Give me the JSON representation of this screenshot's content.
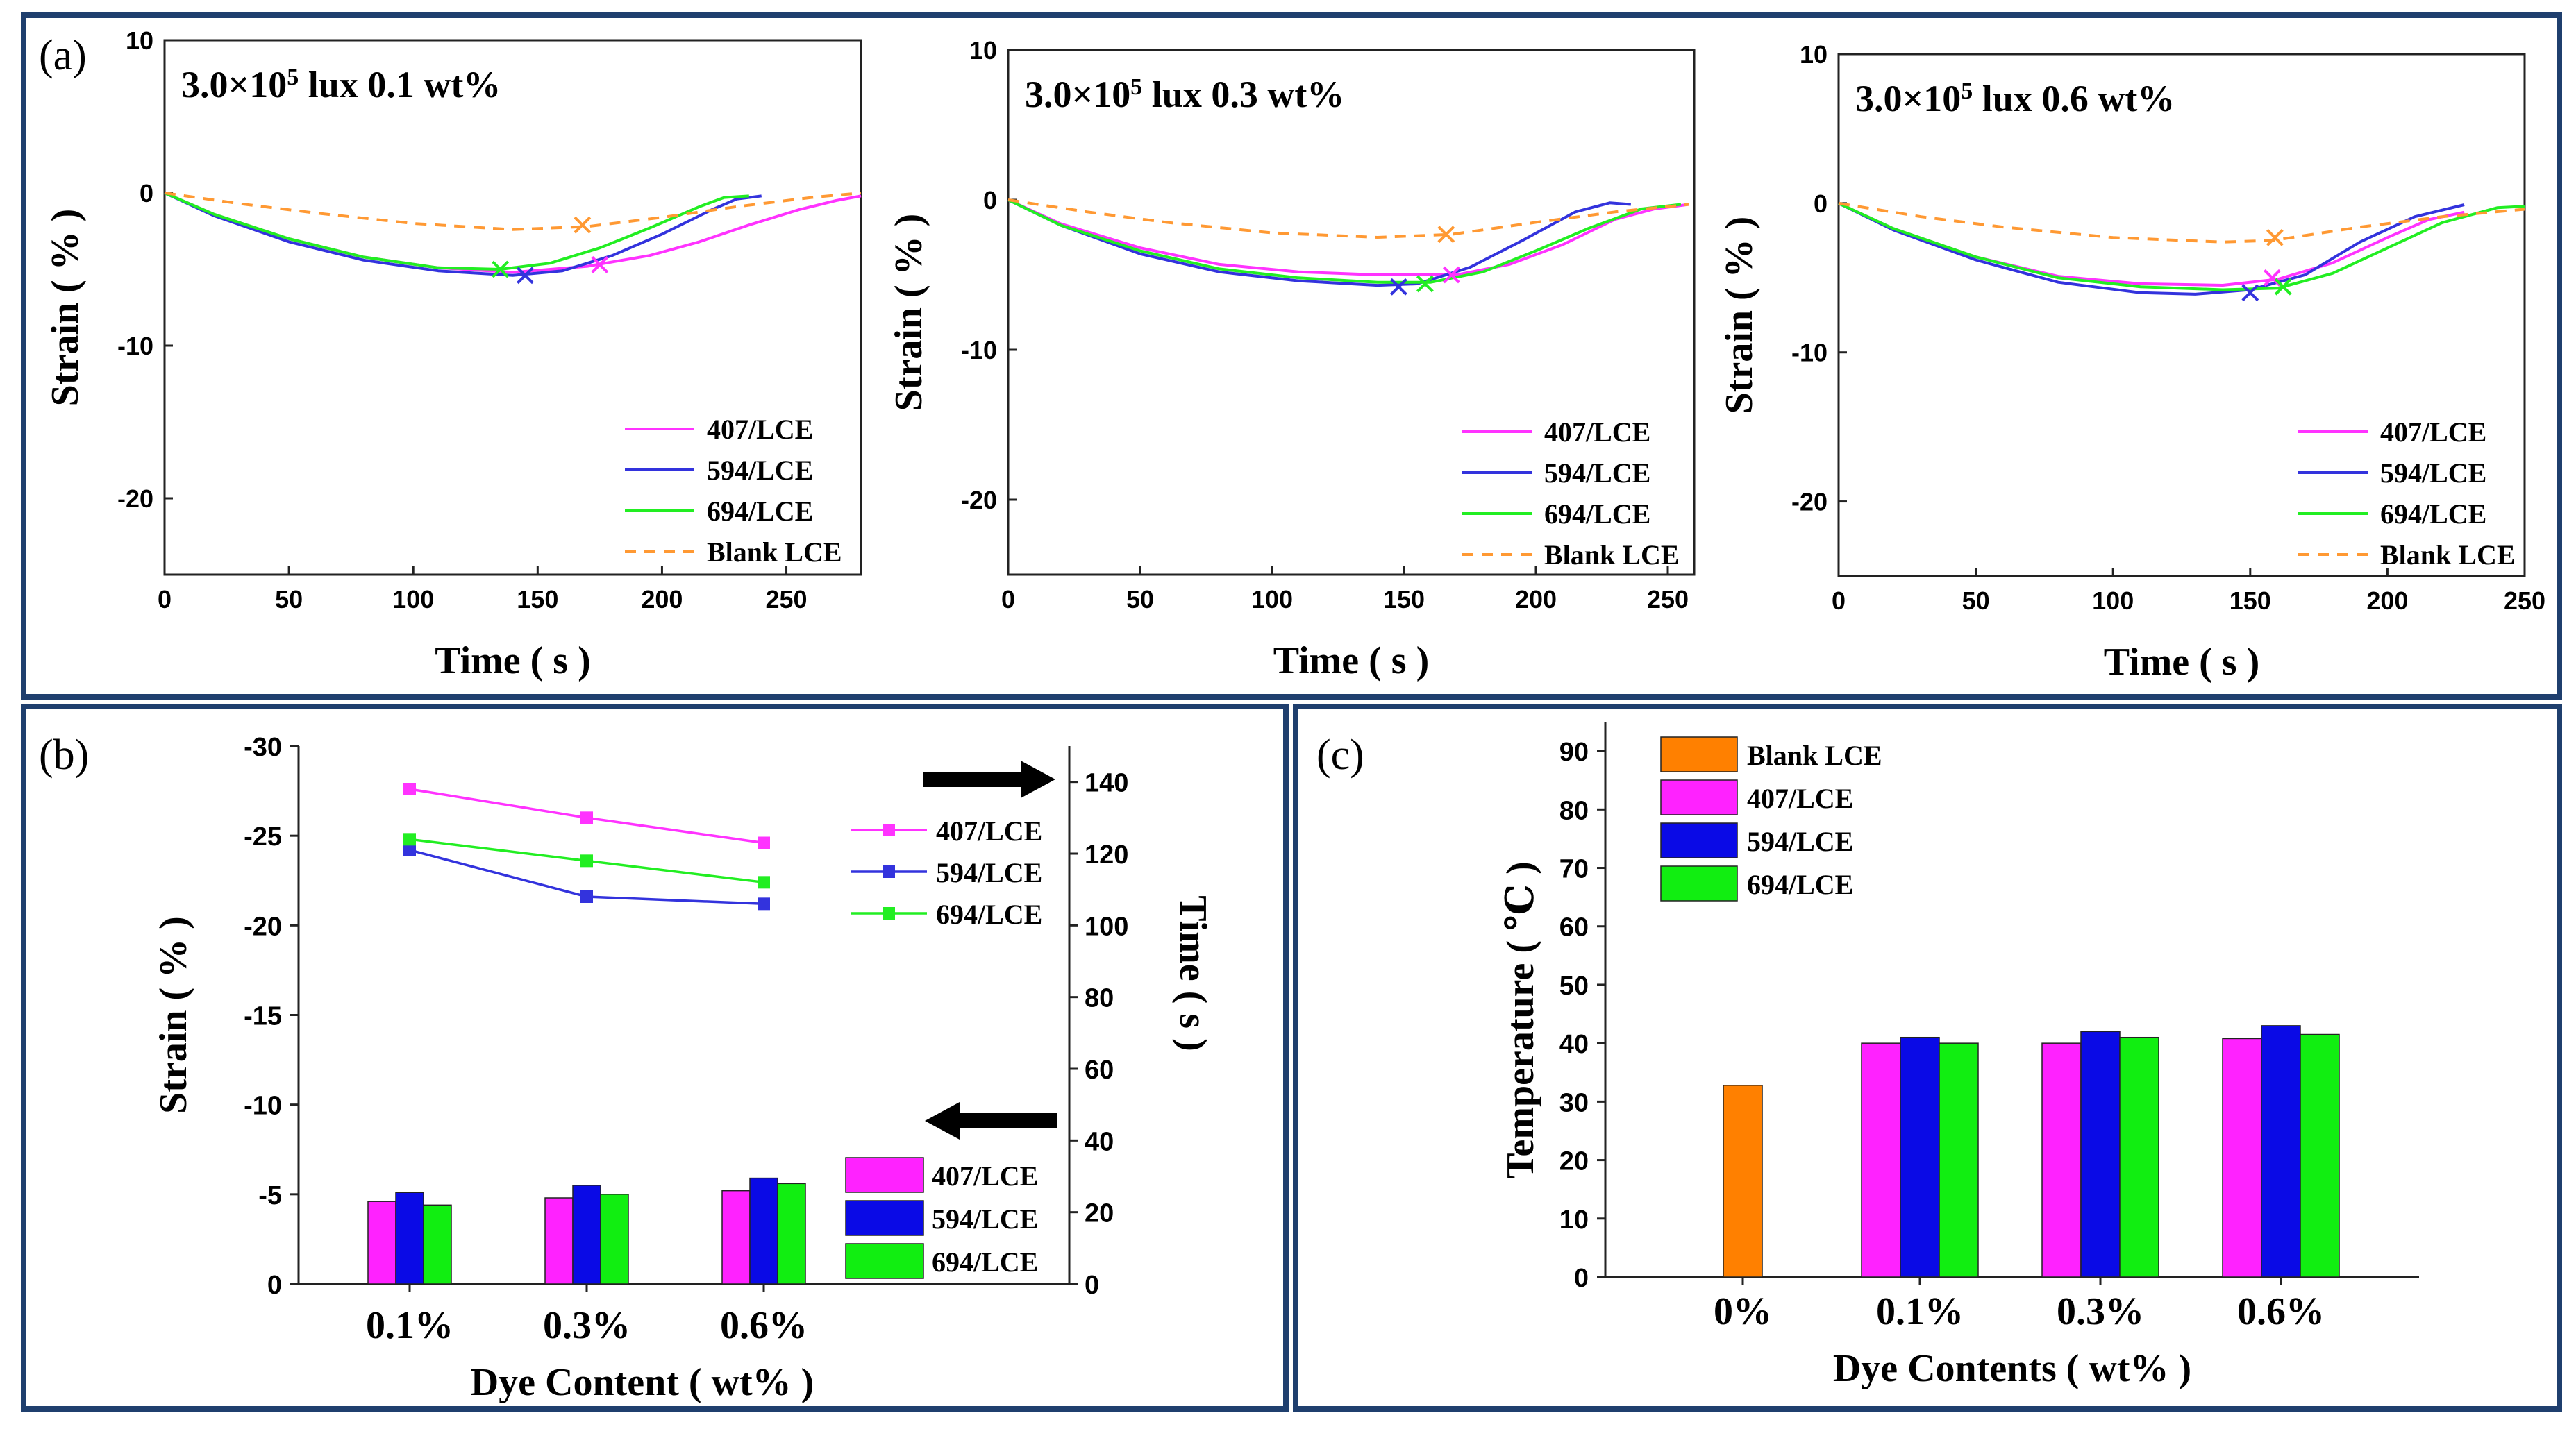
{
  "panel_labels": {
    "a": "(a)",
    "b": "(b)",
    "c": "(c)"
  },
  "colors": {
    "c407": "#ff33ff",
    "c594": "#3333dd",
    "c694": "#22ee22",
    "blank": "#ff9933",
    "frame": "#1f3f6e",
    "bar407": "#ff22ff",
    "bar594": "#0a0ae6",
    "bar694": "#11ee11",
    "barBlank": "#ff8000"
  },
  "chart_data": [
    {
      "id": "a1",
      "type": "line",
      "title": "3.0×10⁵ lux  0.1 wt%",
      "title_base": "3.0×10",
      "title_sup": "5",
      "title_rest": " lux  0.1 wt%",
      "xlabel": "Time ( s )",
      "ylabel": "Strain ( % )",
      "xlim": [
        0,
        280
      ],
      "ylim": [
        -25,
        10
      ],
      "xticks": [
        0,
        50,
        100,
        150,
        200,
        250
      ],
      "yticks": [
        10,
        0,
        -10,
        -20
      ],
      "legend": [
        "407/LCE",
        "594/LCE",
        "694/LCE",
        "Blank LCE"
      ],
      "series": [
        {
          "name": "407/LCE",
          "x": [
            0,
            20,
            50,
            80,
            110,
            140,
            170,
            195,
            215,
            235,
            255,
            270,
            280
          ],
          "y": [
            0,
            -1.4,
            -3.0,
            -4.2,
            -4.9,
            -5.2,
            -4.8,
            -4.1,
            -3.2,
            -2.1,
            -1.1,
            -0.5,
            -0.2
          ]
        },
        {
          "name": "594/LCE",
          "x": [
            0,
            20,
            50,
            80,
            110,
            140,
            160,
            180,
            200,
            220,
            230,
            240
          ],
          "y": [
            0,
            -1.5,
            -3.2,
            -4.4,
            -5.1,
            -5.4,
            -5.1,
            -4.1,
            -2.7,
            -1.1,
            -0.4,
            -0.2
          ]
        },
        {
          "name": "694/LCE",
          "x": [
            0,
            20,
            50,
            80,
            110,
            135,
            155,
            175,
            195,
            215,
            225,
            235
          ],
          "y": [
            0,
            -1.4,
            -3.0,
            -4.2,
            -4.9,
            -5.0,
            -4.6,
            -3.6,
            -2.3,
            -0.9,
            -0.3,
            -0.2
          ]
        },
        {
          "name": "Blank LCE",
          "x": [
            0,
            30,
            60,
            100,
            140,
            170,
            200,
            230,
            260,
            280
          ],
          "y": [
            0,
            -0.7,
            -1.3,
            -2.0,
            -2.4,
            -2.2,
            -1.6,
            -0.9,
            -0.3,
            0
          ]
        }
      ],
      "markers": [
        {
          "name": "407/LCE",
          "x": 175,
          "y": -4.7
        },
        {
          "name": "594/LCE",
          "x": 145,
          "y": -5.4
        },
        {
          "name": "694/LCE",
          "x": 135,
          "y": -5.0
        },
        {
          "name": "Blank LCE",
          "x": 168,
          "y": -2.1
        }
      ]
    },
    {
      "id": "a2",
      "type": "line",
      "title": "3.0×10⁵ lux  0.3 wt%",
      "title_base": "3.0×10",
      "title_sup": "5",
      "title_rest": " lux  0.3 wt%",
      "xlabel": "Time ( s )",
      "ylabel": "Strain ( % )",
      "xlim": [
        0,
        260
      ],
      "ylim": [
        -25,
        10
      ],
      "xticks": [
        0,
        50,
        100,
        150,
        200,
        250
      ],
      "yticks": [
        10,
        0,
        -10,
        -20
      ],
      "legend": [
        "407/LCE",
        "594/LCE",
        "694/LCE",
        "Blank LCE"
      ],
      "series": [
        {
          "name": "407/LCE",
          "x": [
            0,
            20,
            50,
            80,
            110,
            140,
            170,
            190,
            210,
            230,
            245,
            258
          ],
          "y": [
            0,
            -1.6,
            -3.2,
            -4.3,
            -4.8,
            -5.0,
            -5.0,
            -4.3,
            -3.0,
            -1.3,
            -0.6,
            -0.3
          ]
        },
        {
          "name": "594/LCE",
          "x": [
            0,
            20,
            50,
            80,
            110,
            140,
            155,
            175,
            195,
            215,
            228,
            236
          ],
          "y": [
            0,
            -1.7,
            -3.6,
            -4.8,
            -5.4,
            -5.7,
            -5.6,
            -4.5,
            -2.7,
            -0.8,
            -0.2,
            -0.3
          ]
        },
        {
          "name": "694/LCE",
          "x": [
            0,
            20,
            50,
            80,
            110,
            140,
            160,
            180,
            200,
            220,
            240,
            255
          ],
          "y": [
            0,
            -1.7,
            -3.4,
            -4.6,
            -5.2,
            -5.5,
            -5.5,
            -4.8,
            -3.4,
            -1.9,
            -0.6,
            -0.3
          ]
        },
        {
          "name": "Blank LCE",
          "x": [
            0,
            30,
            60,
            100,
            140,
            168,
            200,
            230,
            258
          ],
          "y": [
            0,
            -0.8,
            -1.5,
            -2.2,
            -2.5,
            -2.3,
            -1.5,
            -0.8,
            -0.3
          ]
        }
      ],
      "markers": [
        {
          "name": "407/LCE",
          "x": 168,
          "y": -5.0
        },
        {
          "name": "594/LCE",
          "x": 148,
          "y": -5.8
        },
        {
          "name": "694/LCE",
          "x": 158,
          "y": -5.6
        },
        {
          "name": "Blank LCE",
          "x": 166,
          "y": -2.3
        }
      ]
    },
    {
      "id": "a3",
      "type": "line",
      "title": "3.0×10⁵ lux  0.6 wt%",
      "title_base": "3.0×10",
      "title_sup": "5",
      "title_rest": " lux  0.6 wt%",
      "xlabel": "Time ( s )",
      "ylabel": "Strain ( % )",
      "xlim": [
        0,
        250
      ],
      "ylim": [
        -25,
        10
      ],
      "xticks": [
        0,
        50,
        100,
        150,
        200,
        250
      ],
      "yticks": [
        10,
        0,
        -10,
        -20
      ],
      "legend": [
        "407/LCE",
        "594/LCE",
        "694/LCE",
        "Blank LCE"
      ],
      "series": [
        {
          "name": "407/LCE",
          "x": [
            0,
            20,
            50,
            80,
            110,
            140,
            160,
            180,
            200,
            215,
            228
          ],
          "y": [
            0,
            -1.7,
            -3.6,
            -4.9,
            -5.4,
            -5.5,
            -5.1,
            -4.0,
            -2.3,
            -1.1,
            -0.6
          ]
        },
        {
          "name": "594/LCE",
          "x": [
            0,
            20,
            50,
            80,
            110,
            130,
            150,
            170,
            190,
            210,
            228
          ],
          "y": [
            0,
            -1.8,
            -3.8,
            -5.3,
            -6.0,
            -6.1,
            -5.8,
            -4.8,
            -2.6,
            -0.9,
            -0.1
          ]
        },
        {
          "name": "694/LCE",
          "x": [
            0,
            20,
            50,
            80,
            110,
            140,
            160,
            180,
            200,
            220,
            240,
            250
          ],
          "y": [
            0,
            -1.7,
            -3.6,
            -5.0,
            -5.6,
            -5.8,
            -5.7,
            -4.7,
            -3.0,
            -1.3,
            -0.3,
            -0.2
          ]
        },
        {
          "name": "Blank LCE",
          "x": [
            0,
            30,
            60,
            100,
            140,
            158,
            190,
            220,
            250
          ],
          "y": [
            0,
            -0.9,
            -1.6,
            -2.3,
            -2.6,
            -2.5,
            -1.6,
            -0.9,
            -0.4
          ]
        }
      ],
      "markers": [
        {
          "name": "407/LCE",
          "x": 158,
          "y": -5.0
        },
        {
          "name": "594/LCE",
          "x": 150,
          "y": -6.0
        },
        {
          "name": "694/LCE",
          "x": 162,
          "y": -5.6
        },
        {
          "name": "Blank LCE",
          "x": 159,
          "y": -2.3
        }
      ]
    },
    {
      "id": "b",
      "type": "bar+line",
      "xlabel": "Dye Content ( wt% )",
      "ylabel_left": "Strain ( % )",
      "ylabel_right": "Time ( s )",
      "categories": [
        "0.1%",
        "0.3%",
        "0.6%"
      ],
      "ylim_left": [
        0,
        -30
      ],
      "yticks_left": [
        -30,
        -25,
        -20,
        -15,
        -10,
        -5,
        0
      ],
      "ylim_right": [
        0,
        150
      ],
      "yticks_right": [
        140,
        120,
        100,
        80,
        60,
        40,
        20,
        0
      ],
      "bar_series": [
        {
          "name": "407/LCE",
          "values": [
            -4.6,
            -4.8,
            -5.2
          ]
        },
        {
          "name": "594/LCE",
          "values": [
            -5.1,
            -5.5,
            -5.9
          ]
        },
        {
          "name": "694/LCE",
          "values": [
            -4.4,
            -5.0,
            -5.6
          ]
        }
      ],
      "line_series": [
        {
          "name": "407/LCE",
          "values": [
            138,
            130,
            123
          ]
        },
        {
          "name": "594/LCE",
          "values": [
            121,
            108,
            106
          ]
        },
        {
          "name": "694/LCE",
          "values": [
            124,
            118,
            112
          ]
        }
      ],
      "line_legend": [
        "407/LCE",
        "594/LCE",
        "694/LCE"
      ],
      "bar_legend": [
        "407/LCE",
        "594/LCE",
        "694/LCE"
      ]
    },
    {
      "id": "c",
      "type": "bar",
      "xlabel": "Dye Contents ( wt% )",
      "ylabel": "Temperature ( ℃ )",
      "categories": [
        "0%",
        "0.1%",
        "0.3%",
        "0.6%"
      ],
      "ylim": [
        0,
        95
      ],
      "yticks": [
        0,
        10,
        20,
        30,
        40,
        50,
        60,
        70,
        80,
        90
      ],
      "legend": [
        "Blank LCE",
        "407/LCE",
        "594/LCE",
        "694/LCE"
      ],
      "series": [
        {
          "name": "Blank LCE",
          "values": [
            32.8,
            null,
            null,
            null
          ]
        },
        {
          "name": "407/LCE",
          "values": [
            null,
            40.0,
            40.0,
            40.8
          ]
        },
        {
          "name": "594/LCE",
          "values": [
            null,
            41.0,
            42.0,
            43.0
          ]
        },
        {
          "name": "694/LCE",
          "values": [
            null,
            40.0,
            41.0,
            41.5
          ]
        }
      ]
    }
  ]
}
